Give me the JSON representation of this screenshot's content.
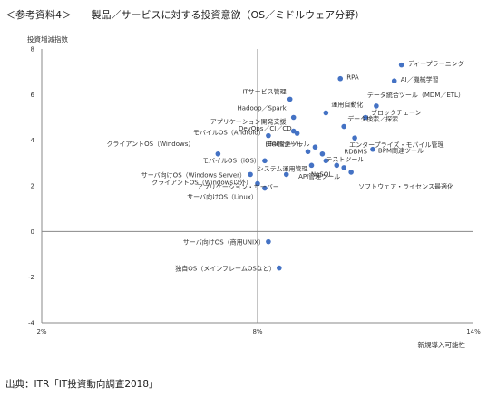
{
  "header": {
    "number": "＜参考資料4＞",
    "title": "製品／サービスに対する投資意欲（OS／ミドルウェア分野）"
  },
  "footer": {
    "source": "出典：ITR「IT投資動向調査2018」"
  },
  "chart_data": {
    "type": "scatter",
    "title": "",
    "xlabel": "新規導入可能性",
    "ylabel": "投資増減指数",
    "xlim": [
      2,
      14
    ],
    "ylim": [
      -4,
      8
    ],
    "xticks": [
      "2%",
      "8%",
      "14%"
    ],
    "xtick_values": [
      2,
      8,
      14
    ],
    "yticks": [
      -4,
      -2,
      0,
      2,
      4,
      6,
      8
    ],
    "grid": false,
    "point_color": "#4472c4",
    "points": [
      {
        "label": "ディープラーニング",
        "x": 12.0,
        "y": 7.3
      },
      {
        "label": "RPA",
        "x": 10.3,
        "y": 6.7
      },
      {
        "label": "AI／機械学習",
        "x": 11.8,
        "y": 6.6
      },
      {
        "label": "データ統合ツール（MDM／ETL）",
        "x": 11.3,
        "y": 5.5
      },
      {
        "label": "ITサービス管理",
        "x": 8.9,
        "y": 5.8
      },
      {
        "label": "運用自動化",
        "x": 9.9,
        "y": 5.2
      },
      {
        "label": "Hadoop／Spark",
        "x": 9.0,
        "y": 5.0
      },
      {
        "label": "ブロックチェーン",
        "x": 11.0,
        "y": 5.0
      },
      {
        "label": "アプリケーション開発支援",
        "x": 9.0,
        "y": 4.4
      },
      {
        "label": "データ検索／探索",
        "x": 10.4,
        "y": 4.6
      },
      {
        "label": "DevOps／CI／CD",
        "x": 9.1,
        "y": 4.3
      },
      {
        "label": "エンタープライズ・モバイル管理",
        "x": 10.7,
        "y": 4.1
      },
      {
        "label": "モバイルOS（Android）",
        "x": 8.3,
        "y": 4.2
      },
      {
        "label": "EAI関連ツール",
        "x": 9.6,
        "y": 3.7
      },
      {
        "label": "BPM関連ツール",
        "x": 11.2,
        "y": 3.6
      },
      {
        "label": "クライアントOS（Windows）",
        "x": 6.9,
        "y": 3.4
      },
      {
        "label": "BRMSツール",
        "x": 9.4,
        "y": 3.5
      },
      {
        "label": "テストツール",
        "x": 9.8,
        "y": 3.4
      },
      {
        "label": "モバイルOS（iOS）",
        "x": 8.2,
        "y": 3.1
      },
      {
        "label": "RDBMS",
        "x": 9.9,
        "y": 3.1
      },
      {
        "label": "システム運用管理",
        "x": 9.5,
        "y": 2.9
      },
      {
        "label": "サーバ向けOS（Windows Server）",
        "x": 7.8,
        "y": 2.5
      },
      {
        "label": "NoSQL",
        "x": 10.2,
        "y": 2.9
      },
      {
        "label": "API管理ツール",
        "x": 10.4,
        "y": 2.8
      },
      {
        "label": "ソフトウェア・ライセンス最適化",
        "x": 10.6,
        "y": 2.6
      },
      {
        "label": "クライアントOS（Windows以外）",
        "x": 8.0,
        "y": 2.1
      },
      {
        "label": "サーバ向けOS（Linux）",
        "x": 8.2,
        "y": 1.9
      },
      {
        "label": "アプリケーション・サーバー",
        "x": 8.8,
        "y": 2.5
      },
      {
        "label": "サーバ向けOS（商用UNIX）",
        "x": 8.3,
        "y": -0.45
      },
      {
        "label": "独自OS（メインフレームOSなど）",
        "x": 8.6,
        "y": -1.6
      }
    ]
  }
}
